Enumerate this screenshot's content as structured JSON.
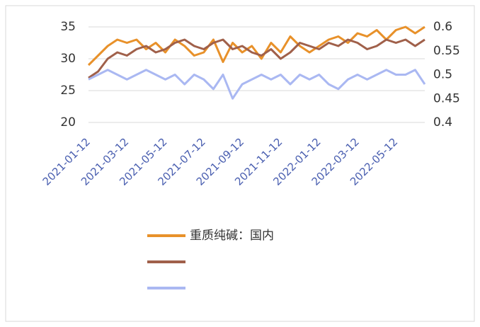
{
  "chart_data": {
    "type": "line",
    "categories": [
      "2021-01-12",
      null,
      null,
      null,
      "2021-03-12",
      null,
      null,
      null,
      "2021-05-12",
      null,
      null,
      null,
      "2021-07-12",
      null,
      null,
      null,
      "2021-09-12",
      null,
      null,
      null,
      "2021-11-12",
      null,
      null,
      null,
      "2022-01-12",
      null,
      null,
      null,
      "2022-03-12",
      null,
      null,
      null,
      "2022-05-12",
      null,
      null,
      null
    ],
    "series": [
      {
        "name": "重质纯碱：国内",
        "color": "#e8912a",
        "values": [
          29,
          30.5,
          32,
          33,
          32.5,
          33,
          31.5,
          32.5,
          31,
          33,
          32,
          30.5,
          31,
          33,
          29.5,
          32.5,
          31,
          32,
          30,
          32.5,
          31,
          33.5,
          32,
          31,
          32,
          33,
          33.5,
          32.5,
          34,
          33.5,
          34.5,
          33,
          34.5,
          35,
          34,
          35
        ]
      },
      {
        "color": "#a0604a",
        "values": [
          27,
          28,
          30,
          31,
          30.5,
          31.5,
          32,
          31,
          31.5,
          32.5,
          33,
          32,
          31.5,
          32.5,
          33,
          31.5,
          32,
          31,
          30.5,
          31.5,
          30,
          31,
          32.5,
          32,
          31.5,
          32.5,
          32,
          33,
          32.5,
          31.5,
          32,
          33,
          32.5,
          33,
          32,
          33
        ]
      },
      {
        "color": "#aab8f2",
        "axis": "y2",
        "values": [
          0.49,
          0.5,
          0.51,
          0.5,
          0.49,
          0.5,
          0.51,
          0.5,
          0.49,
          0.5,
          0.48,
          0.5,
          0.49,
          0.47,
          0.5,
          0.45,
          0.48,
          0.49,
          0.5,
          0.49,
          0.5,
          0.48,
          0.5,
          0.49,
          0.5,
          0.48,
          0.47,
          0.49,
          0.5,
          0.49,
          0.5,
          0.51,
          0.5,
          0.5,
          0.51,
          0.48
        ]
      }
    ],
    "ylim": [
      20,
      35
    ],
    "yticks": [
      20,
      25,
      30,
      35
    ],
    "y2lim": [
      0.4,
      0.6
    ],
    "y2ticks": [
      0.4,
      0.45,
      0.5,
      0.55,
      0.6
    ],
    "grid": true
  }
}
